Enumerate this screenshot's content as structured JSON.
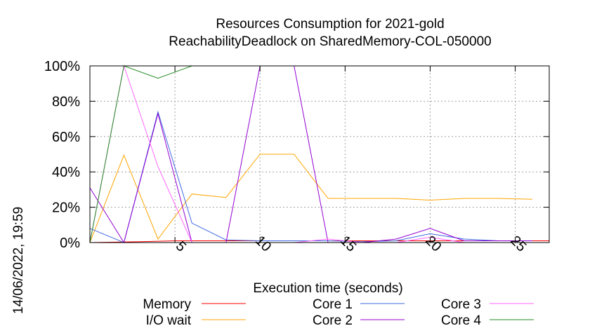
{
  "chart_data": {
    "type": "line",
    "title": "Resources Consumption for 2021-gold",
    "subtitle": "ReachabilityDeadlock on SharedMemory-COL-050000",
    "xlabel": "Execution time (seconds)",
    "ylabel": "",
    "xlim": [
      0,
      27
    ],
    "ylim": [
      0,
      100
    ],
    "x_ticks": [
      5,
      10,
      15,
      20,
      25
    ],
    "y_ticks": [
      0,
      20,
      40,
      60,
      80,
      100
    ],
    "y_tick_suffix": "%",
    "grid": true,
    "legend_placement": "bottom",
    "timestamp": "14/06/2022, 19:59",
    "series": [
      {
        "name": "Memory",
        "color": "#ff0000",
        "x": [
          0,
          3,
          5,
          7,
          9,
          11,
          13,
          15,
          17,
          19,
          21,
          23,
          25,
          27
        ],
        "values": [
          0,
          0.5,
          1,
          1,
          1,
          1,
          1,
          1,
          1,
          1,
          1,
          1,
          1,
          1
        ]
      },
      {
        "name": "I/O wait",
        "color": "#ffa500",
        "x": [
          0,
          2,
          4,
          6,
          8,
          10,
          12,
          14,
          16,
          18,
          20,
          22,
          24,
          26
        ],
        "values": [
          0,
          49.5,
          2,
          27.5,
          25.5,
          50,
          50,
          25,
          25,
          25,
          24,
          25,
          25,
          24.5
        ]
      },
      {
        "name": "Core 1",
        "color": "#4169e1",
        "x": [
          0,
          2,
          4,
          6,
          8,
          10,
          12,
          14,
          16,
          18,
          20,
          22,
          24,
          26
        ],
        "values": [
          8,
          0,
          74,
          11,
          1.5,
          1,
          1,
          1,
          0.5,
          1,
          5,
          2,
          1,
          1
        ]
      },
      {
        "name": "Core 2",
        "color": "#9400d3",
        "x": [
          0,
          2,
          4,
          6,
          8,
          10,
          12,
          14,
          16,
          18,
          20,
          22,
          24,
          26
        ],
        "values": [
          31,
          0,
          73,
          0,
          0,
          100,
          100,
          0,
          0,
          2,
          8,
          1,
          1,
          1
        ]
      },
      {
        "name": "Core 3",
        "color": "#ff66ff",
        "x": [
          0,
          2,
          4,
          6,
          8,
          10,
          12,
          14,
          16,
          18,
          20,
          22,
          24,
          26
        ],
        "values": [
          0,
          100,
          43,
          0,
          0,
          0,
          0,
          2,
          0,
          0,
          3,
          0,
          0,
          0
        ]
      },
      {
        "name": "Core 4",
        "color": "#228b22",
        "x": [
          0,
          2,
          4,
          6,
          8,
          10,
          12,
          14,
          16,
          18,
          20,
          22,
          24,
          26
        ],
        "values": [
          0,
          100,
          93,
          100,
          100,
          100,
          100,
          100,
          100,
          100,
          100,
          100,
          100,
          100
        ]
      }
    ]
  }
}
